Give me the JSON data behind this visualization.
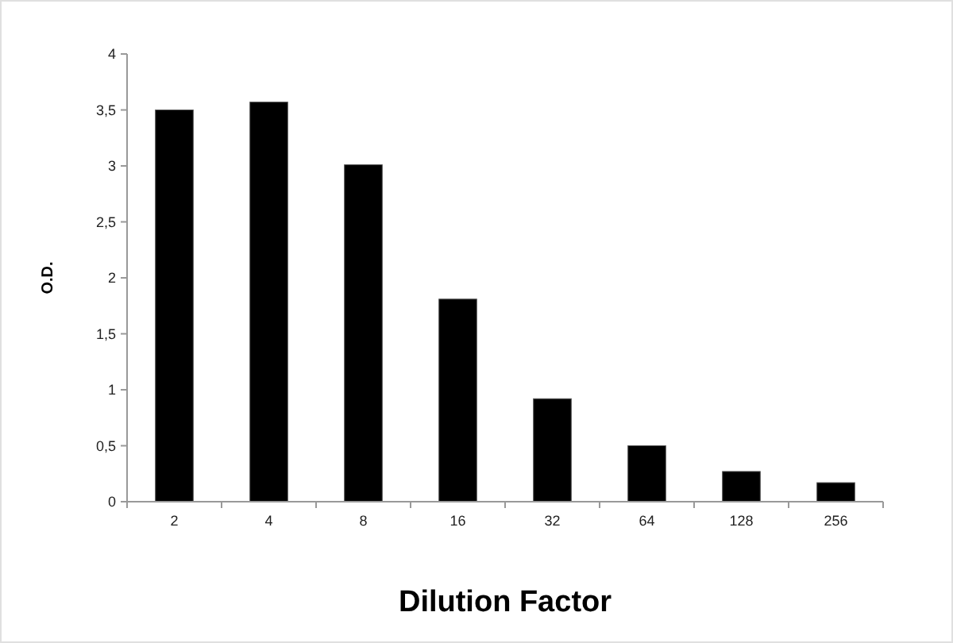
{
  "chart_data": {
    "type": "bar",
    "xlabel": "Dilution Factor",
    "ylabel": "O.D.",
    "categories": [
      "2",
      "4",
      "8",
      "16",
      "32",
      "64",
      "128",
      "256"
    ],
    "values": [
      3.5,
      3.57,
      3.01,
      1.81,
      0.92,
      0.5,
      0.27,
      0.17
    ],
    "color": "#000000",
    "ylim": [
      0,
      4
    ],
    "yticks": [
      0,
      {
        "value": 0.5,
        "label": "0,5"
      },
      1,
      {
        "value": 1.5,
        "label": "1,5"
      },
      2,
      {
        "value": 2.5,
        "label": "2,5"
      },
      3,
      {
        "value": 3.5,
        "label": "3,5"
      },
      4
    ],
    "grid": false
  }
}
